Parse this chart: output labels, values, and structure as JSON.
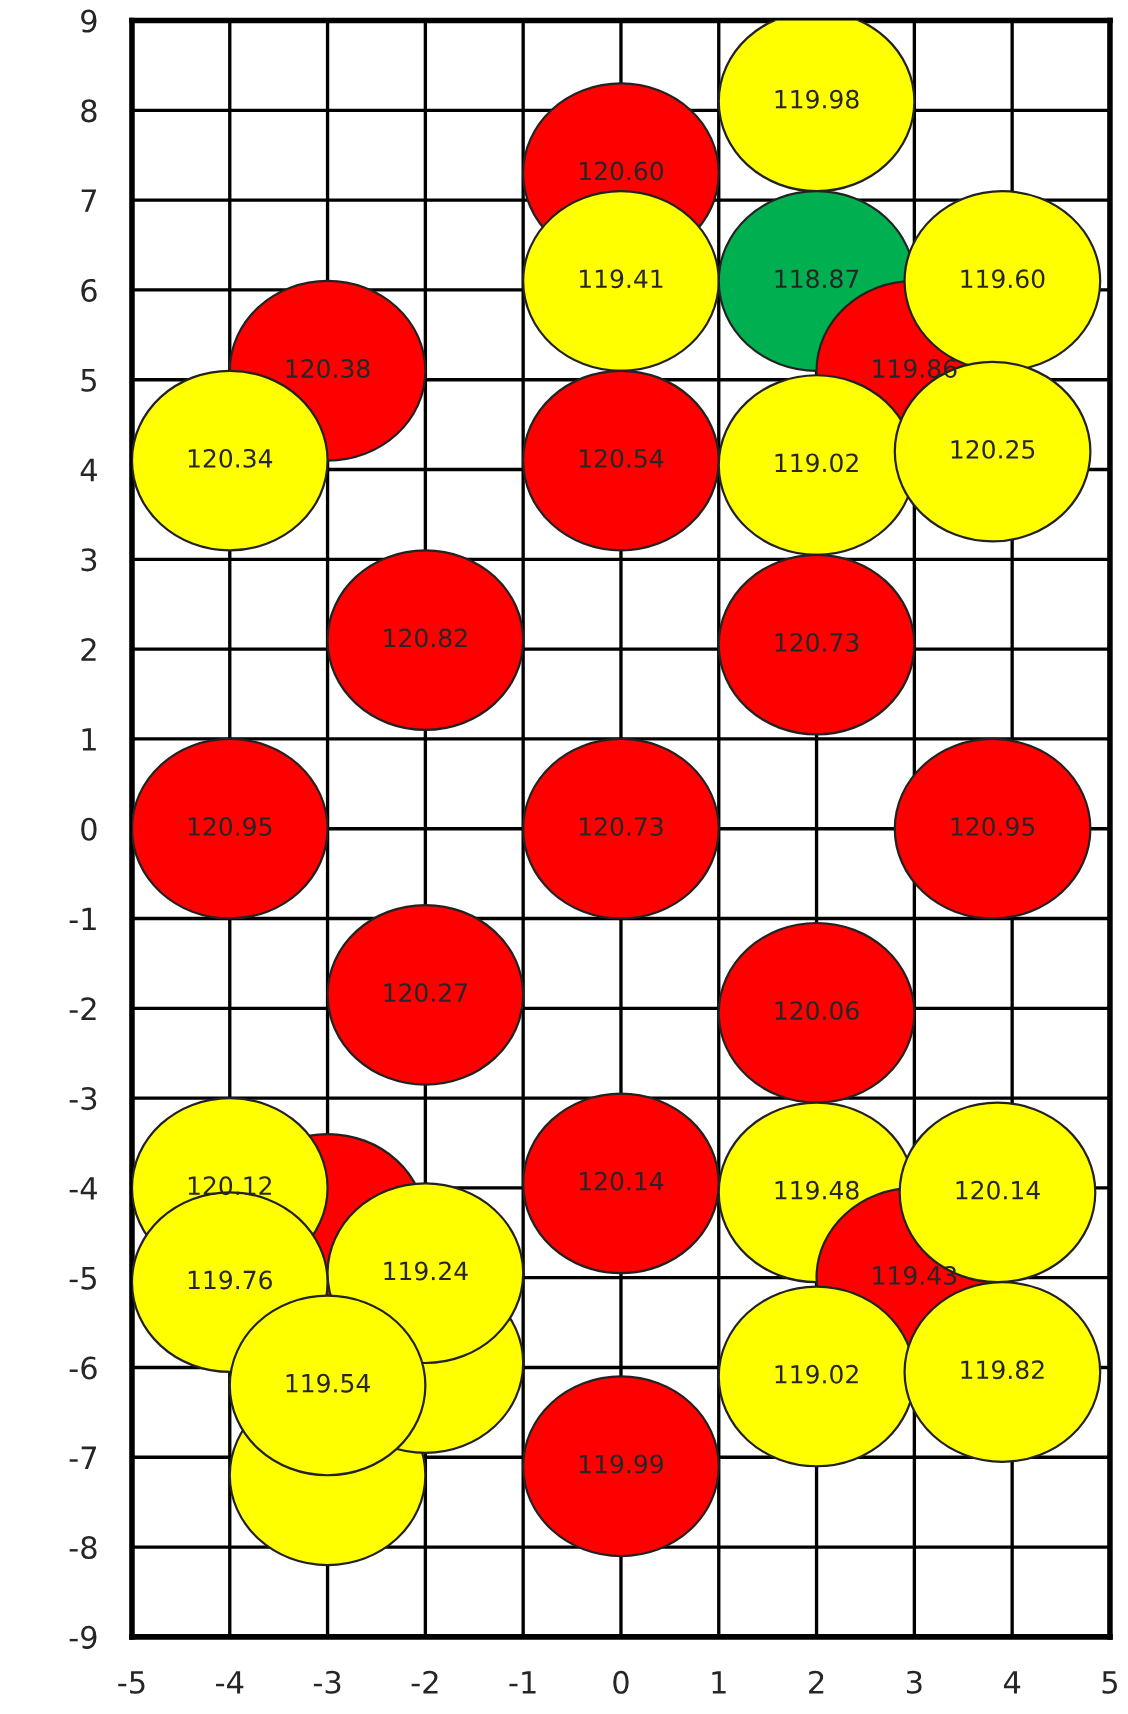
{
  "chart_data": {
    "type": "bubble",
    "xlim": [
      -5,
      5
    ],
    "xticks": [
      -5,
      -4,
      -3,
      -2,
      -1,
      0,
      1,
      2,
      3,
      4,
      5
    ],
    "ylim": [
      -9,
      9
    ],
    "yticks": [
      -9,
      -8,
      -7,
      -6,
      -5,
      -4,
      -3,
      -2,
      -1,
      0,
      1,
      2,
      3,
      4,
      5,
      6,
      7,
      8,
      9
    ],
    "grid": true,
    "legend": false,
    "series": [
      {
        "x": [
          0,
          2,
          0,
          2,
          3,
          3.9,
          -3,
          -4,
          0,
          2,
          3.8,
          -2,
          2,
          -4,
          0,
          3.8,
          -2,
          2,
          -3,
          -4,
          -4,
          -3,
          -2,
          -2,
          -3,
          0,
          2,
          3,
          3.85,
          2,
          3.9,
          0
        ],
        "values": [
          7.3,
          8.1,
          6.1,
          6.1,
          5.1,
          6.1,
          5.1,
          4.1,
          4.1,
          4.05,
          4.2,
          2.1,
          2.05,
          0,
          0,
          0,
          -1.85,
          -2.05,
          -4.4,
          -4.0,
          -5.05,
          -7.2,
          -5.95,
          -4.95,
          -6.2,
          -3.95,
          -4.05,
          -5.0,
          -4.05,
          -6.1,
          -6.05,
          -7.1
        ],
        "sizes": [
          1,
          1,
          1,
          1,
          1,
          1,
          1,
          1,
          1,
          1,
          1,
          1,
          1,
          1,
          1,
          1,
          1,
          1,
          1,
          1,
          1,
          1,
          1,
          1,
          1,
          1,
          1,
          1,
          1,
          1,
          1,
          1
        ],
        "colors": [
          "#ff0000",
          "#ffff00",
          "#ffff00",
          "#00b050",
          "#ff0000",
          "#ffff00",
          "#ff0000",
          "#ffff00",
          "#ff0000",
          "#ffff00",
          "#ffff00",
          "#ff0000",
          "#ff0000",
          "#ff0000",
          "#ff0000",
          "#ff0000",
          "#ff0000",
          "#ff0000",
          "#ff0000",
          "#ffff00",
          "#ffff00",
          "#ffff00",
          "#ffff00",
          "#ffff00",
          "#ffff00",
          "#ff0000",
          "#ffff00",
          "#ff0000",
          "#ffff00",
          "#ffff00",
          "#ffff00",
          "#ff0000"
        ]
      }
    ],
    "annotations": [
      {
        "text": "120.60",
        "x": 0,
        "y": 7.3
      },
      {
        "text": "119.98",
        "x": 2,
        "y": 8.1
      },
      {
        "text": "119.41",
        "x": 0,
        "y": 6.1
      },
      {
        "text": "118.87",
        "x": 2,
        "y": 6.1
      },
      {
        "text": "119.86",
        "x": 3,
        "y": 5.1
      },
      {
        "text": "119.60",
        "x": 3.9,
        "y": 6.1
      },
      {
        "text": "120.38",
        "x": -3,
        "y": 5.1
      },
      {
        "text": "120.34",
        "x": -4,
        "y": 4.1
      },
      {
        "text": "120.54",
        "x": 0,
        "y": 4.1
      },
      {
        "text": "119.02",
        "x": 2,
        "y": 4.05
      },
      {
        "text": "120.25",
        "x": 3.8,
        "y": 4.2
      },
      {
        "text": "120.82",
        "x": -2,
        "y": 2.1
      },
      {
        "text": "120.73",
        "x": 2,
        "y": 2.05
      },
      {
        "text": "120.95",
        "x": -4,
        "y": 0
      },
      {
        "text": "120.73",
        "x": 0,
        "y": 0
      },
      {
        "text": "120.95",
        "x": 3.8,
        "y": 0
      },
      {
        "text": "120.27",
        "x": -2,
        "y": -1.85
      },
      {
        "text": "120.06",
        "x": 2,
        "y": -2.05
      },
      {
        "text": "120.12",
        "x": -4,
        "y": -4.0
      },
      {
        "text": "119.76",
        "x": -4,
        "y": -5.05
      },
      {
        "text": "119.24",
        "x": -2,
        "y": -4.95
      },
      {
        "text": "119.54",
        "x": -3,
        "y": -6.2
      },
      {
        "text": "120.14",
        "x": 0,
        "y": -3.95
      },
      {
        "text": "119.48",
        "x": 2,
        "y": -4.05
      },
      {
        "text": "119.43",
        "x": 3,
        "y": -5.0
      },
      {
        "text": "120.14",
        "x": 3.85,
        "y": -4.05
      },
      {
        "text": "119.02",
        "x": 2,
        "y": -6.1
      },
      {
        "text": "119.82",
        "x": 3.9,
        "y": -6.05
      },
      {
        "text": "119.99",
        "x": 0,
        "y": -7.1
      }
    ]
  }
}
